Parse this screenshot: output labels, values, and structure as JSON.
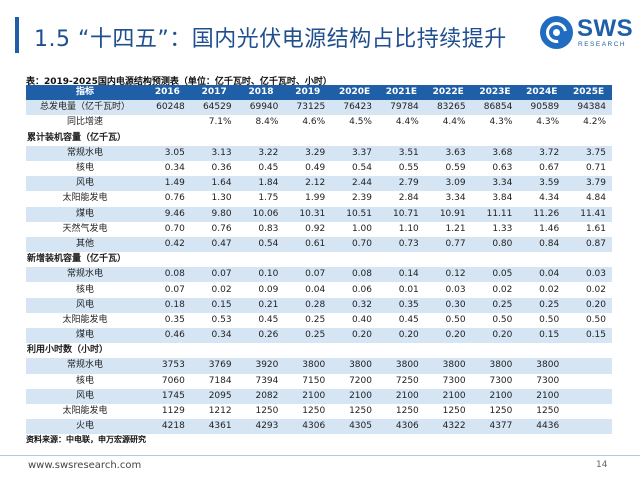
{
  "header": {
    "title": "1.5 “十四五”：国内光伏电源结构占比持续提升",
    "logo_text": "SWS",
    "logo_sub": "RESEARCH"
  },
  "table": {
    "caption": "表：2019-2025国内电源结构预测表（单位：亿千瓦时、亿千瓦时、小时）",
    "columns": [
      "指标",
      "2016",
      "2017",
      "2018",
      "2019",
      "2020E",
      "2021E",
      "2022E",
      "2023E",
      "2024E",
      "2025E"
    ],
    "rows": [
      {
        "kind": "row",
        "label": "总发电量（亿千瓦时）",
        "values": [
          "60248",
          "64529",
          "69940",
          "73125",
          "76423",
          "79784",
          "83265",
          "86854",
          "90589",
          "94384"
        ]
      },
      {
        "kind": "row",
        "label": "同比增速",
        "values": [
          "",
          "7.1%",
          "8.4%",
          "4.6%",
          "4.5%",
          "4.4%",
          "4.4%",
          "4.3%",
          "4.3%",
          "4.2%"
        ]
      },
      {
        "kind": "section",
        "label": "累计装机容量（亿千瓦）"
      },
      {
        "kind": "row",
        "label": "常规水电",
        "values": [
          "3.05",
          "3.13",
          "3.22",
          "3.29",
          "3.37",
          "3.51",
          "3.63",
          "3.68",
          "3.72",
          "3.75"
        ]
      },
      {
        "kind": "row",
        "label": "核电",
        "values": [
          "0.34",
          "0.36",
          "0.45",
          "0.49",
          "0.54",
          "0.55",
          "0.59",
          "0.63",
          "0.67",
          "0.71"
        ]
      },
      {
        "kind": "row",
        "label": "风电",
        "values": [
          "1.49",
          "1.64",
          "1.84",
          "2.12",
          "2.44",
          "2.79",
          "3.09",
          "3.34",
          "3.59",
          "3.79"
        ]
      },
      {
        "kind": "row",
        "label": "太阳能发电",
        "values": [
          "0.76",
          "1.30",
          "1.75",
          "1.99",
          "2.39",
          "2.84",
          "3.34",
          "3.84",
          "4.34",
          "4.84"
        ]
      },
      {
        "kind": "row",
        "label": "煤电",
        "values": [
          "9.46",
          "9.80",
          "10.06",
          "10.31",
          "10.51",
          "10.71",
          "10.91",
          "11.11",
          "11.26",
          "11.41"
        ]
      },
      {
        "kind": "row",
        "label": "天然气发电",
        "values": [
          "0.70",
          "0.76",
          "0.83",
          "0.92",
          "1.00",
          "1.10",
          "1.21",
          "1.33",
          "1.46",
          "1.61"
        ]
      },
      {
        "kind": "row",
        "label": "其他",
        "values": [
          "0.42",
          "0.47",
          "0.54",
          "0.61",
          "0.70",
          "0.73",
          "0.77",
          "0.80",
          "0.84",
          "0.87"
        ]
      },
      {
        "kind": "section",
        "label": "新增装机容量（亿千瓦）"
      },
      {
        "kind": "row",
        "label": "常规水电",
        "values": [
          "0.08",
          "0.07",
          "0.10",
          "0.07",
          "0.08",
          "0.14",
          "0.12",
          "0.05",
          "0.04",
          "0.03"
        ]
      },
      {
        "kind": "row",
        "label": "核电",
        "values": [
          "0.07",
          "0.02",
          "0.09",
          "0.04",
          "0.06",
          "0.01",
          "0.03",
          "0.02",
          "0.02",
          "0.02"
        ]
      },
      {
        "kind": "row",
        "label": "风电",
        "values": [
          "0.18",
          "0.15",
          "0.21",
          "0.28",
          "0.32",
          "0.35",
          "0.30",
          "0.25",
          "0.25",
          "0.20"
        ]
      },
      {
        "kind": "row",
        "label": "太阳能发电",
        "values": [
          "0.35",
          "0.53",
          "0.45",
          "0.25",
          "0.40",
          "0.45",
          "0.50",
          "0.50",
          "0.50",
          "0.50"
        ]
      },
      {
        "kind": "row",
        "label": "煤电",
        "values": [
          "0.46",
          "0.34",
          "0.26",
          "0.25",
          "0.20",
          "0.20",
          "0.20",
          "0.20",
          "0.15",
          "0.15"
        ]
      },
      {
        "kind": "section",
        "label": "利用小时数（小时）"
      },
      {
        "kind": "row",
        "label": "常规水电",
        "values": [
          "3753",
          "3769",
          "3920",
          "3800",
          "3800",
          "3800",
          "3800",
          "3800",
          "3800",
          ""
        ]
      },
      {
        "kind": "row",
        "label": "核电",
        "values": [
          "7060",
          "7184",
          "7394",
          "7150",
          "7200",
          "7250",
          "7300",
          "7300",
          "7300",
          ""
        ]
      },
      {
        "kind": "row",
        "label": "风电",
        "values": [
          "1745",
          "2095",
          "2082",
          "2100",
          "2100",
          "2100",
          "2100",
          "2100",
          "2100",
          ""
        ]
      },
      {
        "kind": "row",
        "label": "太阳能发电",
        "values": [
          "1129",
          "1212",
          "1250",
          "1250",
          "1250",
          "1250",
          "1250",
          "1250",
          "1250",
          ""
        ]
      },
      {
        "kind": "row",
        "label": "火电",
        "values": [
          "4218",
          "4361",
          "4293",
          "4306",
          "4305",
          "4306",
          "4322",
          "4377",
          "4436",
          ""
        ]
      }
    ]
  },
  "source": "资料来源：中电联，申万宏源研究",
  "footer": {
    "url": "www.swsresearch.com",
    "page": "14"
  },
  "colors": {
    "brand_blue": "#1f5fa8",
    "row_shade": "#d6e5f4"
  }
}
